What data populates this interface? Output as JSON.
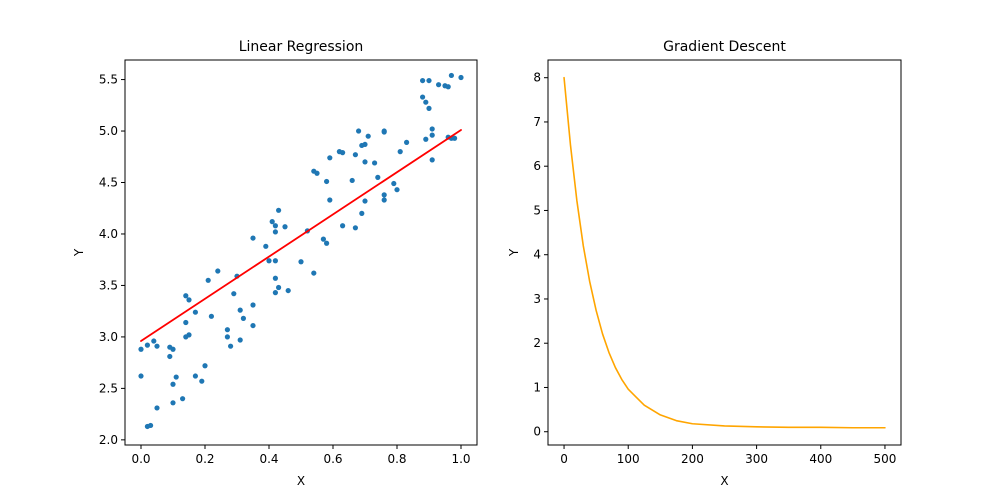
{
  "chart_data": [
    {
      "type": "scatter",
      "title": "Linear Regression",
      "xlabel": "X",
      "ylabel": "Y",
      "xlim": [
        -0.05,
        1.05
      ],
      "ylim": [
        1.95,
        5.69
      ],
      "xticks": [
        0.0,
        0.2,
        0.4,
        0.6,
        0.8,
        1.0
      ],
      "xtick_labels": [
        "0.0",
        "0.2",
        "0.4",
        "0.6",
        "0.8",
        "1.0"
      ],
      "yticks": [
        2.0,
        2.5,
        3.0,
        3.5,
        4.0,
        4.5,
        5.0,
        5.5
      ],
      "ytick_labels": [
        "2.0",
        "2.5",
        "3.0",
        "3.5",
        "4.0",
        "4.5",
        "5.0",
        "5.5"
      ],
      "grid": false,
      "series": [
        {
          "kind": "scatter",
          "color": "#1f77b4",
          "points": [
            [
              0.0,
              2.88
            ],
            [
              0.0,
              2.62
            ],
            [
              0.02,
              2.92
            ],
            [
              0.02,
              2.13
            ],
            [
              0.03,
              2.14
            ],
            [
              0.04,
              2.96
            ],
            [
              0.05,
              2.91
            ],
            [
              0.05,
              2.31
            ],
            [
              0.09,
              2.81
            ],
            [
              0.09,
              2.9
            ],
            [
              0.1,
              2.88
            ],
            [
              0.1,
              2.54
            ],
            [
              0.1,
              2.36
            ],
            [
              0.11,
              2.61
            ],
            [
              0.13,
              2.4
            ],
            [
              0.14,
              3.4
            ],
            [
              0.14,
              3.14
            ],
            [
              0.14,
              3.0
            ],
            [
              0.15,
              3.36
            ],
            [
              0.15,
              3.02
            ],
            [
              0.17,
              3.24
            ],
            [
              0.17,
              2.62
            ],
            [
              0.19,
              2.57
            ],
            [
              0.2,
              2.72
            ],
            [
              0.21,
              3.55
            ],
            [
              0.22,
              3.2
            ],
            [
              0.24,
              3.64
            ],
            [
              0.27,
              3.07
            ],
            [
              0.27,
              3.0
            ],
            [
              0.28,
              2.91
            ],
            [
              0.29,
              3.42
            ],
            [
              0.3,
              3.59
            ],
            [
              0.31,
              3.26
            ],
            [
              0.31,
              2.97
            ],
            [
              0.32,
              3.18
            ],
            [
              0.35,
              3.96
            ],
            [
              0.35,
              3.31
            ],
            [
              0.35,
              3.11
            ],
            [
              0.39,
              3.88
            ],
            [
              0.4,
              3.74
            ],
            [
              0.41,
              4.12
            ],
            [
              0.42,
              4.08
            ],
            [
              0.42,
              4.02
            ],
            [
              0.42,
              3.74
            ],
            [
              0.42,
              3.57
            ],
            [
              0.42,
              3.43
            ],
            [
              0.43,
              4.23
            ],
            [
              0.43,
              3.48
            ],
            [
              0.45,
              4.07
            ],
            [
              0.46,
              3.45
            ],
            [
              0.5,
              3.73
            ],
            [
              0.52,
              4.03
            ],
            [
              0.54,
              4.61
            ],
            [
              0.54,
              3.62
            ],
            [
              0.55,
              4.59
            ],
            [
              0.57,
              3.95
            ],
            [
              0.58,
              4.51
            ],
            [
              0.58,
              3.91
            ],
            [
              0.59,
              4.74
            ],
            [
              0.59,
              4.33
            ],
            [
              0.62,
              4.8
            ],
            [
              0.63,
              4.79
            ],
            [
              0.63,
              4.08
            ],
            [
              0.66,
              4.52
            ],
            [
              0.67,
              4.06
            ],
            [
              0.67,
              4.77
            ],
            [
              0.68,
              5.0
            ],
            [
              0.69,
              4.86
            ],
            [
              0.69,
              4.2
            ],
            [
              0.7,
              4.87
            ],
            [
              0.7,
              4.32
            ],
            [
              0.7,
              4.7
            ],
            [
              0.71,
              4.95
            ],
            [
              0.73,
              4.69
            ],
            [
              0.74,
              4.55
            ],
            [
              0.76,
              4.99
            ],
            [
              0.76,
              5.0
            ],
            [
              0.76,
              4.38
            ],
            [
              0.76,
              4.33
            ],
            [
              0.79,
              4.49
            ],
            [
              0.8,
              4.43
            ],
            [
              0.81,
              4.8
            ],
            [
              0.83,
              4.89
            ],
            [
              0.88,
              5.49
            ],
            [
              0.88,
              5.33
            ],
            [
              0.89,
              5.28
            ],
            [
              0.89,
              4.92
            ],
            [
              0.9,
              5.49
            ],
            [
              0.9,
              5.22
            ],
            [
              0.91,
              5.02
            ],
            [
              0.91,
              4.96
            ],
            [
              0.91,
              4.72
            ],
            [
              0.93,
              5.45
            ],
            [
              0.95,
              5.44
            ],
            [
              0.96,
              5.43
            ],
            [
              0.97,
              5.54
            ],
            [
              0.97,
              4.93
            ],
            [
              0.98,
              4.93
            ],
            [
              1.0,
              5.52
            ],
            [
              0.96,
              4.94
            ]
          ]
        },
        {
          "kind": "line",
          "color": "#ff0000",
          "x": [
            0.0,
            1.0
          ],
          "y": [
            2.96,
            5.01
          ]
        }
      ]
    },
    {
      "type": "line",
      "title": "Gradient Descent",
      "xlabel": "X",
      "ylabel": "Y",
      "xlim": [
        -25,
        525
      ],
      "ylim": [
        -0.3,
        8.4
      ],
      "xticks": [
        0,
        100,
        200,
        300,
        400,
        500
      ],
      "xtick_labels": [
        "0",
        "100",
        "200",
        "300",
        "400",
        "500"
      ],
      "yticks": [
        0,
        1,
        2,
        3,
        4,
        5,
        6,
        7,
        8
      ],
      "ytick_labels": [
        "0",
        "1",
        "2",
        "3",
        "4",
        "5",
        "6",
        "7",
        "8"
      ],
      "grid": false,
      "series": [
        {
          "kind": "line",
          "color": "#ffa500",
          "x": [
            0,
            10,
            20,
            30,
            40,
            50,
            60,
            70,
            80,
            90,
            100,
            125,
            150,
            175,
            200,
            250,
            300,
            350,
            400,
            450,
            500
          ],
          "y": [
            8.0,
            6.48,
            5.22,
            4.2,
            3.39,
            2.74,
            2.21,
            1.79,
            1.45,
            1.18,
            0.96,
            0.6,
            0.38,
            0.25,
            0.18,
            0.13,
            0.11,
            0.1,
            0.1,
            0.09,
            0.09
          ]
        }
      ]
    }
  ]
}
